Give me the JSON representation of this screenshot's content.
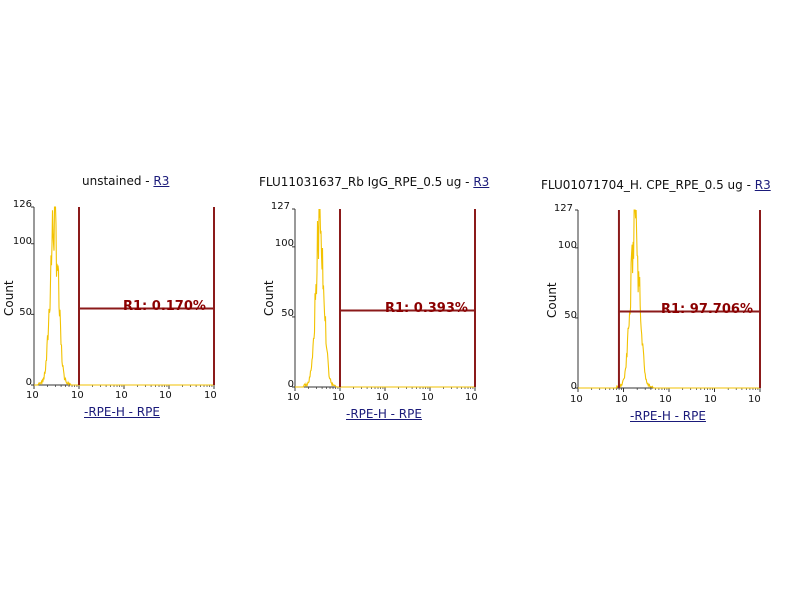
{
  "panels": [
    {
      "title_prefix": "unstained - ",
      "title_gate": "R3",
      "xlabel": "-RPE-H - RPE",
      "ylabel": "Count",
      "y_ticks": [
        "126",
        "100",
        "50",
        "0"
      ],
      "x_ticks": [
        "10",
        "10",
        "10",
        "10",
        "10"
      ],
      "region_label": "R1: 0.170%"
    },
    {
      "title_prefix": "FLU11031637_Rb IgG_RPE_0.5 ug - ",
      "title_gate": "R3",
      "xlabel": "-RPE-H - RPE",
      "ylabel": "Count",
      "y_ticks": [
        "127",
        "100",
        "50",
        "0"
      ],
      "x_ticks": [
        "10",
        "10",
        "10",
        "10",
        "10"
      ],
      "region_label": "R1: 0.393%"
    },
    {
      "title_prefix": "FLU01071704_H. CPE_RPE_0.5 ug - ",
      "title_gate": "R3",
      "xlabel": "-RPE-H - RPE",
      "ylabel": "Count",
      "y_ticks": [
        "127",
        "100",
        "50",
        "0"
      ],
      "x_ticks": [
        "10",
        "10",
        "10",
        "10",
        "10"
      ],
      "region_label": "R1: 97.706%"
    }
  ],
  "colors": {
    "histogram": "#f2c200",
    "gate": "#8b1a1a",
    "axis": "#333333"
  },
  "chart_data": [
    {
      "type": "histogram",
      "title": "unstained - R3",
      "xlabel": "-RPE-H - RPE",
      "ylabel": "Count",
      "xscale": "log",
      "xlim_decades": [
        0,
        4
      ],
      "ylim": [
        0,
        126
      ],
      "gate_R1_decades": [
        1,
        4
      ],
      "gate_R1_percent": 0.17,
      "peak_decade": 0.45,
      "peak_count": 126,
      "spread_decades": 0.09
    },
    {
      "type": "histogram",
      "title": "FLU11031637_Rb IgG_RPE_0.5 ug - R3",
      "xlabel": "-RPE-H - RPE",
      "ylabel": "Count",
      "xscale": "log",
      "xlim_decades": [
        0,
        4
      ],
      "ylim": [
        0,
        127
      ],
      "gate_R1_decades": [
        1,
        4
      ],
      "gate_R1_percent": 0.393,
      "peak_decade": 0.55,
      "peak_count": 127,
      "spread_decades": 0.09
    },
    {
      "type": "histogram",
      "title": "FLU01071704_H. CPE_RPE_0.5 ug - R3",
      "xlabel": "-RPE-H - RPE",
      "ylabel": "Count",
      "xscale": "log",
      "xlim_decades": [
        0,
        4
      ],
      "ylim": [
        0,
        127
      ],
      "gate_R1_decades": [
        0.9,
        4
      ],
      "gate_R1_percent": 97.706,
      "peak_decade": 1.25,
      "peak_count": 127,
      "spread_decades": 0.1
    }
  ]
}
